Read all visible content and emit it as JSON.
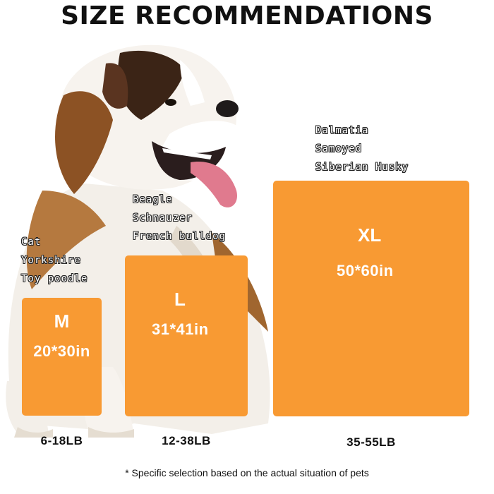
{
  "title": "SIZE RECOMMENDATIONS",
  "accent_color": "#F89A33",
  "sizes": [
    {
      "size": "M",
      "dimensions": "20*30in",
      "weight": "6-18LB",
      "breeds": [
        "Cat",
        "Yorkshire",
        "Toy poodle"
      ]
    },
    {
      "size": "L",
      "dimensions": "31*41in",
      "weight": "12-38LB",
      "breeds": [
        "Beagle",
        "Schnauzer",
        "French bulldog"
      ]
    },
    {
      "size": "XL",
      "dimensions": "50*60in",
      "weight": "35-55LB",
      "breeds": [
        "Dalmatia",
        "Samoyed",
        "Siberian Husky"
      ]
    }
  ],
  "footnote": "* Specific selection based on the actual situation of pets",
  "image": {
    "subject": "saint-bernard-dog-icon"
  }
}
